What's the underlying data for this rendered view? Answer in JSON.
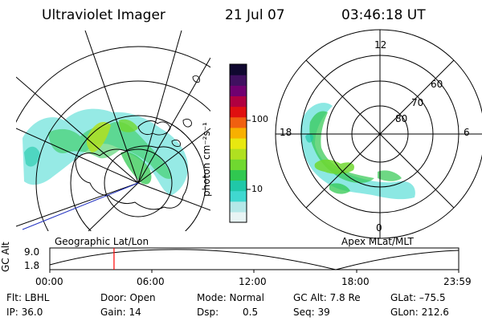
{
  "header": {
    "title": "Ultraviolet Imager",
    "date": "21 Jul 07",
    "time": "03:46:18 UT"
  },
  "left_panel": {
    "caption": "Geographic Lat/Lon"
  },
  "right_panel": {
    "caption": "Apex MLat/MLT",
    "mlt_labels": [
      "12",
      "18",
      "6",
      "0"
    ],
    "lat_labels": [
      "60",
      "70",
      "80"
    ]
  },
  "colorbar": {
    "unit": "photon cm⁻²s⁻¹",
    "ticks": [
      "100",
      "10"
    ],
    "colors": [
      "#e8f4f4",
      "#b4e8e8",
      "#40d8d0",
      "#20c8a8",
      "#30c850",
      "#70d830",
      "#b0e020",
      "#e8e810",
      "#f8b000",
      "#f06010",
      "#e01010",
      "#b00040",
      "#700070",
      "#401060",
      "#100830"
    ]
  },
  "timeline": {
    "ylabel": "GC Alt",
    "y_ticks": [
      "9.0",
      "1.8"
    ],
    "x_ticks": [
      "00:00",
      "06:00",
      "12:00",
      "18:00",
      "23:59"
    ],
    "marker_time": "03:46",
    "marker_color": "#ff0000"
  },
  "status": {
    "flt": "Flt: LBHL",
    "ip": "IP: 36.0",
    "door": "Door: Open",
    "gain": "Gain: 14",
    "mode": "Mode: Normal",
    "dsp_label": "Dsp:",
    "dsp_value": "0.5",
    "gc_alt": "GC Alt: 7.8 Re",
    "seq": "Seq: 39",
    "glat": "GLat: –75.5",
    "glon": "GLon: 212.6"
  }
}
